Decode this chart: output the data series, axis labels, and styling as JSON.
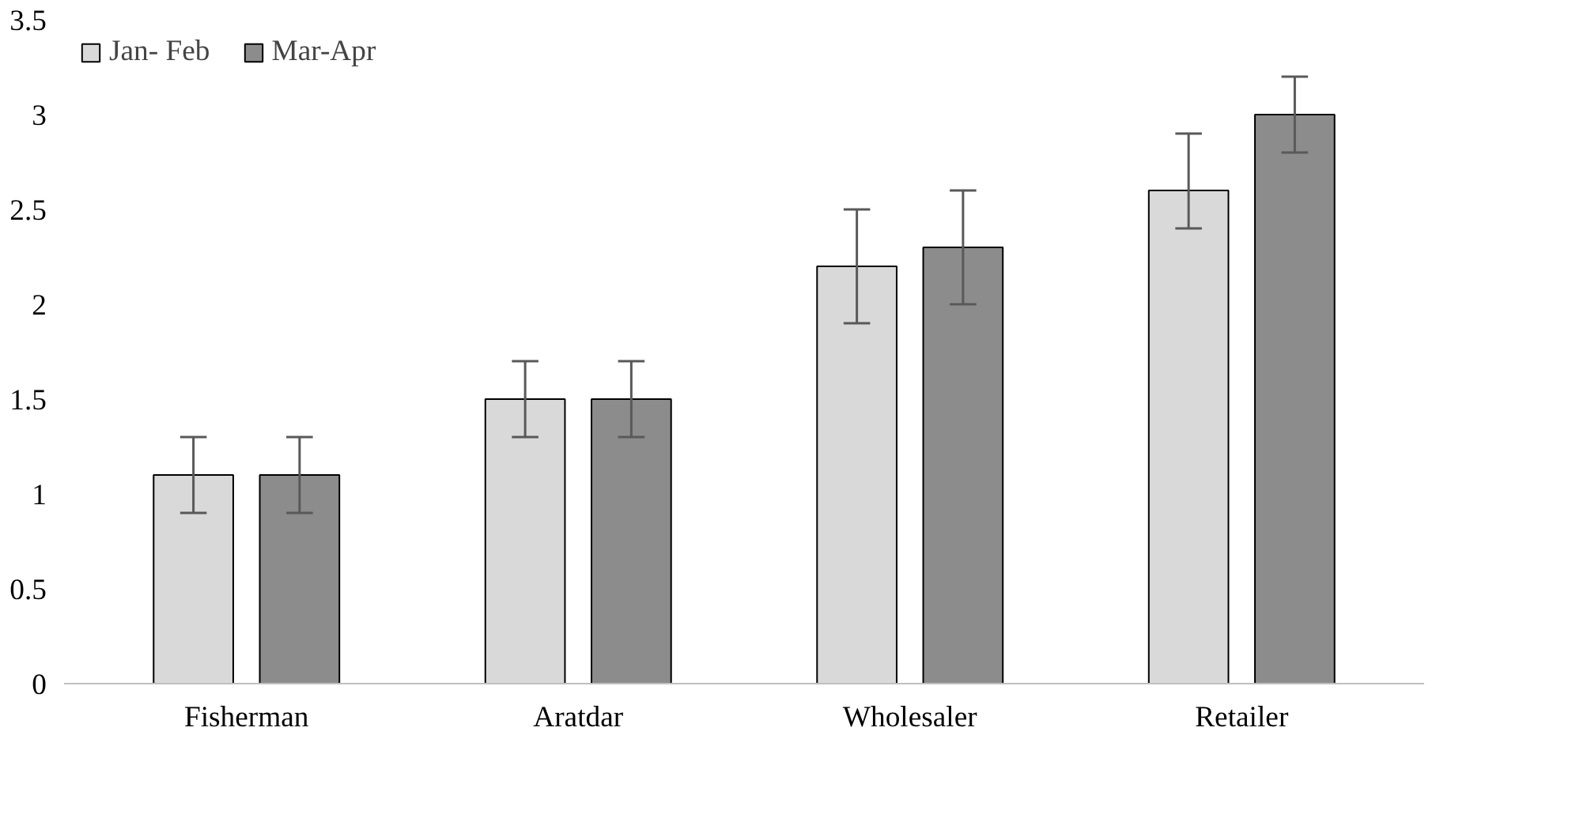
{
  "chart_data": {
    "type": "bar",
    "categories": [
      "Fisherman",
      "Aratdar",
      "Wholesaler",
      "Retailer"
    ],
    "series": [
      {
        "name": "Jan- Feb",
        "color": "#d9d9d9",
        "values": [
          1.1,
          1.5,
          2.2,
          2.6
        ],
        "errors": [
          0.2,
          0.2,
          0.3,
          [
            2.4,
            2.9
          ]
        ]
      },
      {
        "name": "Mar-Apr",
        "color": "#8c8c8c",
        "values": [
          1.1,
          1.5,
          2.3,
          3.0
        ],
        "errors": [
          0.2,
          0.2,
          0.3,
          0.2
        ]
      }
    ],
    "ylim": [
      0,
      3.5
    ],
    "yticks": [
      0,
      0.5,
      1,
      1.5,
      2,
      2.5,
      3,
      3.5
    ],
    "grid": false,
    "legend": "top left"
  }
}
